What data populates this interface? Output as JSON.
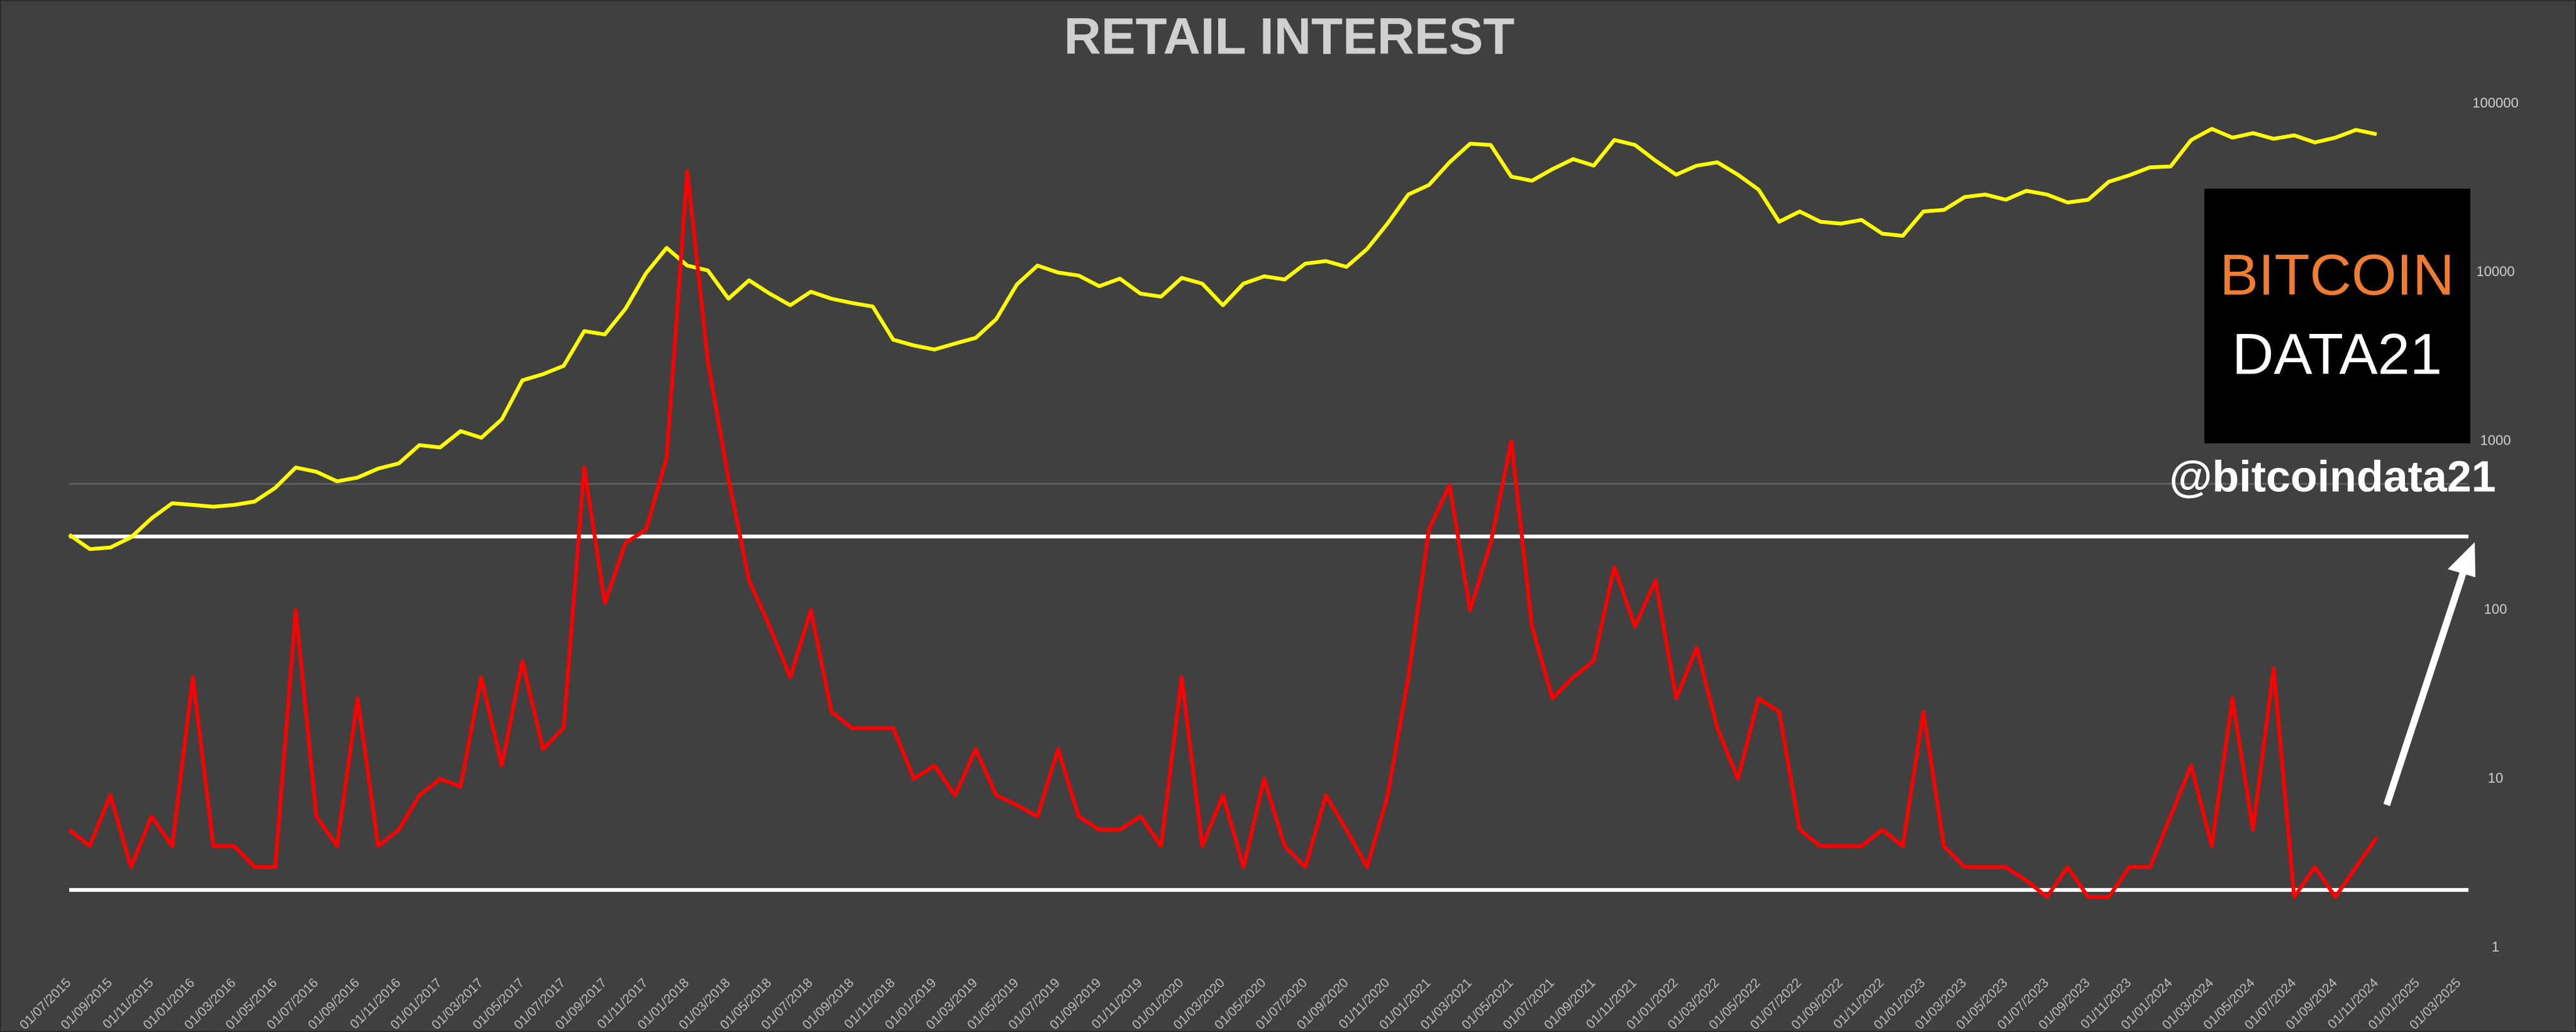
{
  "chart_data": {
    "type": "line",
    "title": "RETAIL INTEREST",
    "x": [
      "01/07/2015",
      "01/08/2015",
      "01/09/2015",
      "01/10/2015",
      "01/11/2015",
      "01/12/2015",
      "01/01/2016",
      "01/02/2016",
      "01/03/2016",
      "01/04/2016",
      "01/05/2016",
      "01/06/2016",
      "01/07/2016",
      "01/08/2016",
      "01/09/2016",
      "01/10/2016",
      "01/11/2016",
      "01/12/2016",
      "01/01/2017",
      "01/02/2017",
      "01/03/2017",
      "01/04/2017",
      "01/05/2017",
      "01/06/2017",
      "01/07/2017",
      "01/08/2017",
      "01/09/2017",
      "01/10/2017",
      "01/11/2017",
      "01/12/2017",
      "01/01/2018",
      "01/02/2018",
      "01/03/2018",
      "01/04/2018",
      "01/05/2018",
      "01/06/2018",
      "01/07/2018",
      "01/08/2018",
      "01/09/2018",
      "01/10/2018",
      "01/11/2018",
      "01/12/2018",
      "01/01/2019",
      "01/02/2019",
      "01/03/2019",
      "01/04/2019",
      "01/05/2019",
      "01/06/2019",
      "01/07/2019",
      "01/08/2019",
      "01/09/2019",
      "01/10/2019",
      "01/11/2019",
      "01/12/2019",
      "01/01/2020",
      "01/02/2020",
      "01/03/2020",
      "01/04/2020",
      "01/05/2020",
      "01/06/2020",
      "01/07/2020",
      "01/08/2020",
      "01/09/2020",
      "01/10/2020",
      "01/11/2020",
      "01/12/2020",
      "01/01/2021",
      "01/02/2021",
      "01/03/2021",
      "01/04/2021",
      "01/05/2021",
      "01/06/2021",
      "01/07/2021",
      "01/08/2021",
      "01/09/2021",
      "01/10/2021",
      "01/11/2021",
      "01/12/2021",
      "01/01/2022",
      "01/02/2022",
      "01/03/2022",
      "01/04/2022",
      "01/05/2022",
      "01/06/2022",
      "01/07/2022",
      "01/08/2022",
      "01/09/2022",
      "01/10/2022",
      "01/11/2022",
      "01/12/2022",
      "01/01/2023",
      "01/02/2023",
      "01/03/2023",
      "01/04/2023",
      "01/05/2023",
      "01/06/2023",
      "01/07/2023",
      "01/08/2023",
      "01/09/2023",
      "01/10/2023",
      "01/11/2023",
      "01/12/2023",
      "01/01/2024",
      "01/02/2024",
      "01/03/2024",
      "01/04/2024",
      "01/05/2024",
      "01/06/2024",
      "01/07/2024",
      "01/08/2024",
      "01/09/2024",
      "01/10/2024",
      "01/11/2024"
    ],
    "series": [
      {
        "color": "#ffff00",
        "values": [
          280,
          230,
          235,
          270,
          350,
          430,
          420,
          410,
          420,
          440,
          530,
          700,
          660,
          580,
          610,
          690,
          740,
          950,
          920,
          1150,
          1050,
          1350,
          2300,
          2500,
          2800,
          4500,
          4300,
          6100,
          9900,
          14000,
          11000,
          10300,
          7000,
          9000,
          7500,
          6400,
          7700,
          7000,
          6600,
          6300,
          4000,
          3700,
          3500,
          3800,
          4100,
          5300,
          8500,
          11000,
          10000,
          9600,
          8300,
          9200,
          7500,
          7200,
          9300,
          8600,
          6400,
          8600,
          9500,
          9100,
          11300,
          11700,
          10800,
          13800,
          19600,
          29000,
          33000,
          45000,
          58000,
          57000,
          37000,
          35000,
          41000,
          47000,
          43000,
          61000,
          57000,
          46000,
          38000,
          43000,
          45000,
          38000,
          31000,
          20000,
          23000,
          20000,
          19500,
          20500,
          17000,
          16500,
          23000,
          23500,
          28000,
          29000,
          27000,
          30500,
          29000,
          26000,
          27000,
          34500,
          37700,
          42000,
          42500,
          61000,
          71000,
          63000,
          67000,
          62000,
          65000,
          59000,
          63000,
          70000,
          66000
        ]
      },
      {
        "color": "#ff0000",
        "values": [
          5,
          4,
          8,
          3,
          6,
          4,
          40,
          4,
          4,
          3,
          3,
          100,
          6,
          4,
          30,
          4,
          5,
          8,
          10,
          9,
          40,
          12,
          50,
          15,
          20,
          700,
          110,
          250,
          300,
          800,
          40000,
          3000,
          600,
          150,
          80,
          40,
          100,
          25,
          20,
          20,
          20,
          10,
          12,
          8,
          15,
          8,
          7,
          6,
          15,
          6,
          5,
          5,
          6,
          4,
          40,
          4,
          8,
          3,
          10,
          4,
          3,
          8,
          5,
          3,
          8,
          40,
          300,
          550,
          100,
          250,
          1000,
          80,
          30,
          40,
          50,
          180,
          80,
          150,
          30,
          60,
          20,
          10,
          30,
          25,
          5,
          4,
          4,
          4,
          5,
          4,
          25,
          4,
          3,
          3,
          3,
          2.5,
          2,
          3,
          2,
          2,
          3,
          3,
          6,
          12,
          4,
          30,
          5,
          45,
          2,
          3,
          2,
          3,
          4.5
        ]
      }
    ],
    "xticks": [
      "01/07/2015",
      "01/09/2015",
      "01/11/2015",
      "01/01/2016",
      "01/03/2016",
      "01/05/2016",
      "01/07/2016",
      "01/09/2016",
      "01/11/2016",
      "01/01/2017",
      "01/03/2017",
      "01/05/2017",
      "01/07/2017",
      "01/09/2017",
      "01/11/2017",
      "01/01/2018",
      "01/03/2018",
      "01/05/2018",
      "01/07/2018",
      "01/09/2018",
      "01/11/2018",
      "01/01/2019",
      "01/03/2019",
      "01/05/2019",
      "01/07/2019",
      "01/09/2019",
      "01/11/2019",
      "01/01/2020",
      "01/03/2020",
      "01/05/2020",
      "01/07/2020",
      "01/09/2020",
      "01/11/2020",
      "01/01/2021",
      "01/03/2021",
      "01/05/2021",
      "01/07/2021",
      "01/09/2021",
      "01/11/2021",
      "01/01/2022",
      "01/03/2022",
      "01/05/2022",
      "01/07/2022",
      "01/09/2022",
      "01/11/2022",
      "01/01/2023",
      "01/03/2023",
      "01/05/2023",
      "01/07/2023",
      "01/09/2023",
      "01/11/2023",
      "01/01/2024",
      "01/03/2024",
      "01/05/2024",
      "01/07/2024",
      "01/09/2024",
      "01/11/2024",
      "01/01/2025",
      "01/03/2025"
    ],
    "ylim": [
      1,
      100000
    ],
    "yticks": [
      1,
      10,
      100,
      1000,
      10000,
      100000
    ],
    "log_scale": true,
    "reference_lines": [
      {
        "value": 560,
        "color": "#5e5e5e"
      },
      {
        "value": 273,
        "color": "#ffffff"
      },
      {
        "value": 2.2,
        "color": "#ffffff"
      }
    ],
    "annotations": {
      "brand_top": "BITCOIN",
      "brand_bottom": "DATA21",
      "handle": "@bitcoindata21"
    }
  }
}
